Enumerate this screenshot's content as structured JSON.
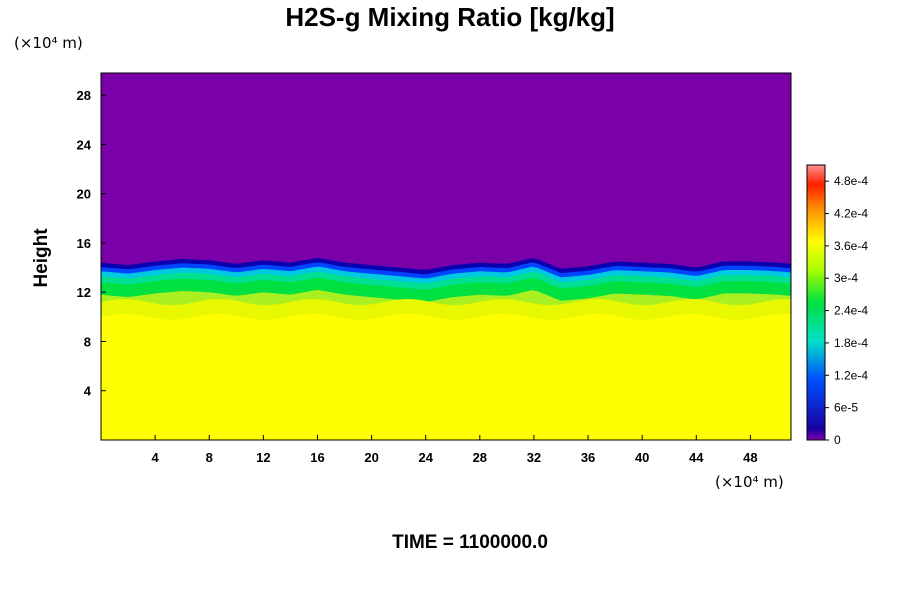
{
  "chart_data": {
    "type": "heatmap",
    "title": "H2S-g Mixing Ratio [kg/kg]",
    "ylabel": "Height",
    "xlabel": "",
    "x_unit": "(×10⁴ m)",
    "y_unit": "(×10⁴ m)",
    "xlim": [
      0,
      51
    ],
    "ylim": [
      0,
      29.8
    ],
    "x_ticks": [
      4,
      8,
      12,
      16,
      20,
      24,
      28,
      32,
      36,
      40,
      44,
      48
    ],
    "y_ticks": [
      4,
      8,
      12,
      16,
      20,
      24,
      28
    ],
    "colorbar": {
      "min": 0,
      "max": 0.00051,
      "tick_values": [
        0,
        6e-05,
        0.00012,
        0.00018,
        0.00024,
        0.0003,
        0.00036,
        0.00042,
        0.00048
      ],
      "tick_labels": [
        "0",
        "6e-5",
        "1.2e-4",
        "1.8e-4",
        "2.4e-4",
        "3e-4",
        "3.6e-4",
        "4.2e-4",
        "4.8e-4"
      ]
    },
    "field_description": [
      {
        "height_range": [
          0,
          10
        ],
        "value": 0.00036
      },
      {
        "height_range": [
          10,
          12
        ],
        "value": 0.00031
      },
      {
        "height_range": [
          12,
          14.5
        ],
        "value": 0.00015
      },
      {
        "height_range": [
          14.5,
          29.8
        ],
        "value": 0
      }
    ],
    "interface_height_profile": {
      "x": [
        0,
        2,
        4,
        6,
        8,
        10,
        12,
        14,
        16,
        18,
        20,
        22,
        24,
        26,
        28,
        30,
        32,
        34,
        36,
        38,
        40,
        42,
        44,
        46,
        48,
        50,
        51
      ],
      "y": [
        14.4,
        14.2,
        14.5,
        14.7,
        14.6,
        14.3,
        14.6,
        14.4,
        14.8,
        14.4,
        14.2,
        14.0,
        13.8,
        14.2,
        14.4,
        14.3,
        14.8,
        13.9,
        14.1,
        14.5,
        14.4,
        14.3,
        14.0,
        14.5,
        14.5,
        14.4,
        14.3
      ]
    },
    "grid": false,
    "legend": "colorbar-right"
  },
  "footer": "TIME = 1100000.0"
}
